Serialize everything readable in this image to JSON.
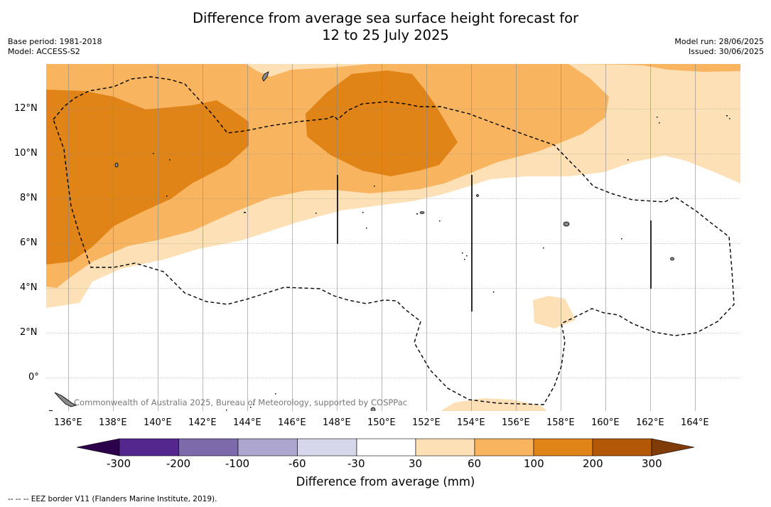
{
  "title_line1": "Difference from average sea surface height forecast for",
  "title_line2": "12 to 25 July 2025",
  "base_period": "Base period: 1981-2018",
  "model": "Model: ACCESS-S2",
  "model_run": "Model run: 28/06/2025",
  "issued": "Issued: 30/06/2025",
  "attribution": "Commonwealth of Australia 2025, Bureau of Meteorology, supported by COSPPac",
  "lon_ticks": [
    "136°E",
    "138°E",
    "140°E",
    "142°E",
    "144°E",
    "146°E",
    "148°E",
    "150°E",
    "152°E",
    "154°E",
    "156°E",
    "158°E",
    "160°E",
    "162°E",
    "164°E"
  ],
  "lat_ticks": [
    "12°N",
    "10°N",
    "8°N",
    "6°N",
    "4°N",
    "2°N",
    "0°"
  ],
  "colorbar": {
    "ticks": [
      "-300",
      "-200",
      "-100",
      "-60",
      "-30",
      "30",
      "60",
      "100",
      "200",
      "300"
    ],
    "label": "Difference from average (mm)",
    "colors": [
      "#54278f",
      "#7c6aab",
      "#ada6ce",
      "#d6d7eb",
      "#ffffff",
      "#fde0b6",
      "#f9b45f",
      "#e08417",
      "#b35806"
    ],
    "low_extend": "#2d004b",
    "high_extend": "#7f3b08"
  },
  "footnote": "--  --  -- EEZ border V11 (Flanders Marine Institute, 2019).",
  "map_colors": {
    "light": "#fde0b6",
    "mid": "#f9b45f",
    "dark": "#e08417"
  }
}
